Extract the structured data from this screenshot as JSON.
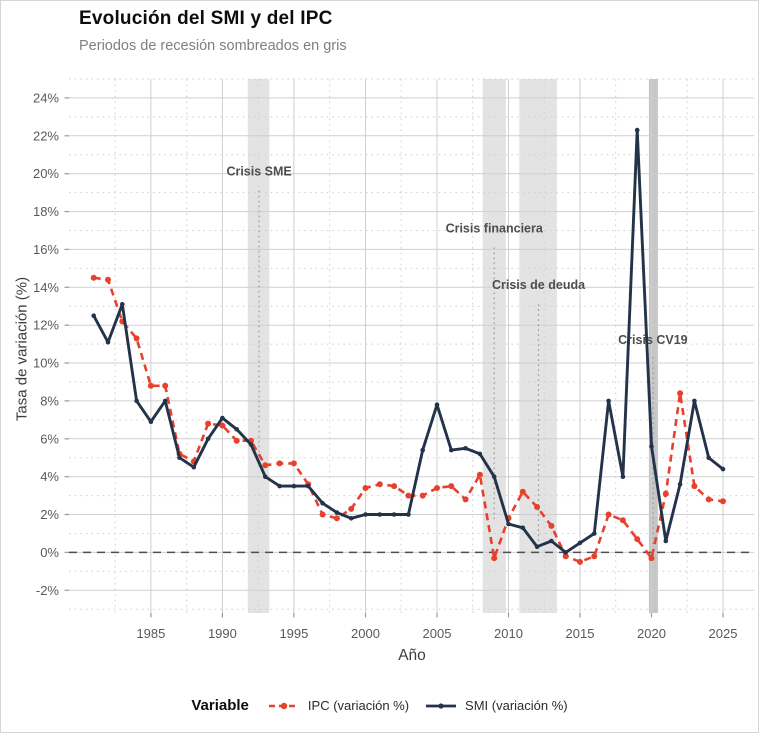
{
  "header": {
    "title": "Evolución del SMI y del IPC",
    "subtitle": "Periodos de recesión sombreados en gris"
  },
  "chart_data": {
    "type": "line",
    "title": "Evolución del SMI y del IPC",
    "subtitle": "Periodos de recesión sombreados en gris",
    "xlabel": "Año",
    "ylabel": "Tasa de variación (%)",
    "legend_title": "Variable",
    "legend_position": "bottom",
    "grid": "major solid + minor dotted",
    "x_ticks": [
      1985,
      1990,
      1995,
      2000,
      2005,
      2010,
      2015,
      2020,
      2025
    ],
    "x_tick_labels": [
      "1985",
      "1990",
      "1995",
      "2000",
      "2005",
      "2010",
      "2015",
      "2020",
      "2025"
    ],
    "y_ticks": [
      -2,
      0,
      2,
      4,
      6,
      8,
      10,
      12,
      14,
      16,
      18,
      20,
      22,
      24
    ],
    "y_tick_labels": [
      "-2%",
      "0%",
      "2%",
      "4%",
      "6%",
      "8%",
      "10%",
      "12%",
      "14%",
      "16%",
      "18%",
      "20%",
      "22%",
      "24%"
    ],
    "x_range": [
      1979.27,
      2027.17
    ],
    "y_range": [
      -3.2,
      25.0
    ],
    "zero_line": 0,
    "years": [
      1981,
      1982,
      1983,
      1984,
      1985,
      1986,
      1987,
      1988,
      1989,
      1990,
      1991,
      1992,
      1993,
      1994,
      1995,
      1996,
      1997,
      1998,
      1999,
      2000,
      2001,
      2002,
      2003,
      2004,
      2005,
      2006,
      2007,
      2008,
      2009,
      2010,
      2011,
      2012,
      2013,
      2014,
      2015,
      2016,
      2017,
      2018,
      2019,
      2020,
      2021,
      2022,
      2023,
      2024,
      2025
    ],
    "series": [
      {
        "id": "ipc",
        "name": "IPC (variación %)",
        "color": "#E7402C",
        "dash": true,
        "values": [
          14.5,
          14.4,
          12.2,
          11.3,
          8.8,
          8.8,
          5.2,
          4.8,
          6.8,
          6.7,
          5.9,
          5.9,
          4.6,
          4.7,
          4.7,
          3.6,
          2.0,
          1.8,
          2.3,
          3.4,
          3.6,
          3.5,
          3.0,
          3.0,
          3.4,
          3.5,
          2.8,
          4.1,
          -0.3,
          1.8,
          3.2,
          2.4,
          1.4,
          -0.2,
          -0.5,
          -0.2,
          2.0,
          1.7,
          0.7,
          -0.3,
          3.1,
          8.4,
          3.5,
          2.8,
          2.7
        ]
      },
      {
        "id": "smi",
        "name": "SMI (variación %)",
        "color": "#233349",
        "dash": false,
        "values": [
          12.5,
          11.1,
          13.1,
          8.0,
          6.9,
          8.0,
          5.0,
          4.5,
          6.0,
          7.1,
          6.5,
          5.7,
          4.0,
          3.5,
          3.5,
          3.5,
          2.6,
          2.1,
          1.8,
          2.0,
          2.0,
          2.0,
          2.0,
          5.4,
          7.8,
          5.4,
          5.5,
          5.2,
          4.0,
          1.5,
          1.3,
          0.3,
          0.6,
          0.0,
          0.5,
          1.0,
          8.0,
          4.0,
          22.3,
          5.6,
          0.6,
          3.6,
          8.0,
          5.0,
          4.4
        ]
      }
    ],
    "recessions": [
      {
        "from": 1991.77,
        "to": 1993.28,
        "fill": "#e3e3e3"
      },
      {
        "from": 2008.2,
        "to": 2009.82,
        "fill": "#e3e3e3"
      },
      {
        "from": 2010.76,
        "to": 2013.39,
        "fill": "#e3e3e3"
      },
      {
        "from": 2019.82,
        "to": 2020.45,
        "fill": "#c6c6c6"
      }
    ],
    "annotations": [
      {
        "label": "Crisis SME",
        "x": 1992.56,
        "text_y": 19.9,
        "line_top": 19.1,
        "line_bottom": 5.1
      },
      {
        "label": "Crisis financiera",
        "x": 2009.0,
        "text_y": 16.9,
        "line_top": 16.1,
        "line_bottom": 1.7
      },
      {
        "label": "Crisis de deuda",
        "x": 2012.1,
        "text_y": 13.9,
        "line_top": 13.1,
        "line_bottom": 0.6
      },
      {
        "label": "Crisis CV19",
        "x": 2020.1,
        "text_y": 11.0,
        "line_top": 10.3,
        "line_bottom": 0.35
      }
    ],
    "colors": {
      "ipc": "#E7402C",
      "smi": "#233349",
      "recession_band": "#e3e3e3",
      "zero_line": "#4d4d4d",
      "major_grid": "#cfcfcf",
      "annotation_text": "#4d4d4d"
    }
  }
}
